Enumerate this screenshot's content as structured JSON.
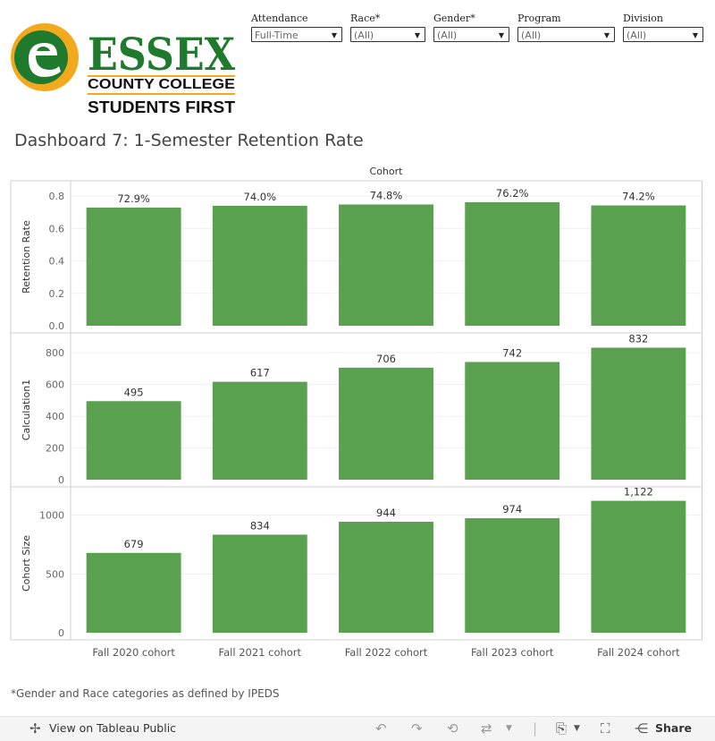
{
  "logo": {
    "wordmark": "ESSEX",
    "line2": "COUNTY COLLEGE",
    "line3": "STUDENTS FIRST",
    "colors": {
      "green": "#1f7a2e",
      "gold": "#f2a91d"
    }
  },
  "filters": [
    {
      "label": "Attendance",
      "value": "Full-Time"
    },
    {
      "label": "Race*",
      "value": "(All)"
    },
    {
      "label": "Gender*",
      "value": "(All)"
    },
    {
      "label": "Program",
      "value": "(All)"
    },
    {
      "label": "Division",
      "value": "(All)"
    }
  ],
  "dashboard_title": "Dashboard 7: 1-Semester Retention Rate",
  "chart_data": {
    "type": "bar",
    "column_header": "Cohort",
    "categories": [
      "Fall 2020 cohort",
      "Fall 2021 cohort",
      "Fall 2022 cohort",
      "Fall 2023 cohort",
      "Fall 2024 cohort"
    ],
    "bar_color": "#59a14f",
    "panels": [
      {
        "ylabel": "Retention Rate",
        "values": [
          0.729,
          0.74,
          0.748,
          0.762,
          0.742
        ],
        "labels": [
          "72.9%",
          "74.0%",
          "74.8%",
          "76.2%",
          "74.2%"
        ],
        "ticks": [
          0.0,
          0.2,
          0.4,
          0.6,
          0.8
        ],
        "tick_labels": [
          "0.0",
          "0.2",
          "0.4",
          "0.6",
          "0.8"
        ],
        "ylim": [
          0,
          0.85
        ]
      },
      {
        "ylabel": "Calculation1",
        "values": [
          495,
          617,
          706,
          742,
          832
        ],
        "labels": [
          "495",
          "617",
          "706",
          "742",
          "832"
        ],
        "ticks": [
          0,
          200,
          400,
          600,
          800
        ],
        "tick_labels": [
          "0",
          "200",
          "400",
          "600",
          "800"
        ],
        "ylim": [
          0,
          880
        ]
      },
      {
        "ylabel": "Cohort Size",
        "values": [
          679,
          834,
          944,
          974,
          1122
        ],
        "labels": [
          "679",
          "834",
          "944",
          "974",
          "1,122"
        ],
        "ticks": [
          0,
          500,
          1000
        ],
        "tick_labels": [
          "0",
          "500",
          "1000"
        ],
        "ylim": [
          0,
          1180
        ]
      }
    ]
  },
  "footnote": "*Gender and Race categories as defined by IPEDS",
  "toolbar": {
    "view_label": "View on Tableau Public",
    "share_label": "Share"
  }
}
